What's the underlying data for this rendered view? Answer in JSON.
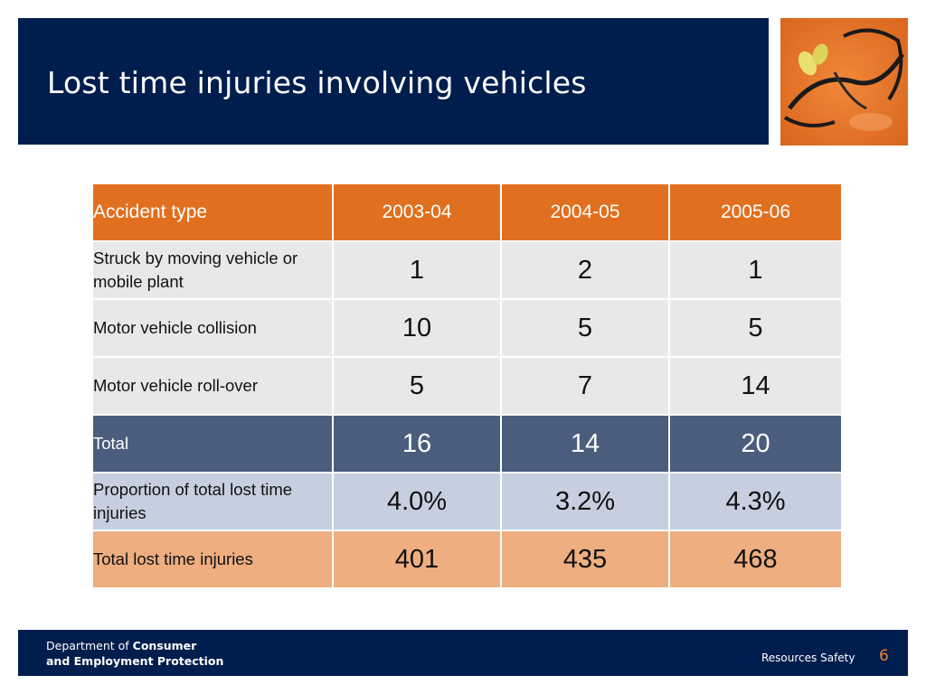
{
  "slide": {
    "title": "Lost time injuries involving vehicles"
  },
  "table": {
    "header": {
      "label": "Accident type",
      "years": [
        "2003-04",
        "2004-05",
        "2005-06"
      ]
    },
    "rows": [
      {
        "label": "Struck by moving vehicle or mobile plant",
        "values": [
          "1",
          "2",
          "1"
        ]
      },
      {
        "label": "Motor vehicle collision",
        "values": [
          "10",
          "5",
          "5"
        ]
      },
      {
        "label": "Motor vehicle roll-over",
        "values": [
          "5",
          "7",
          "14"
        ]
      },
      {
        "label": "Total",
        "values": [
          "16",
          "14",
          "20"
        ]
      },
      {
        "label": "Proportion of total lost time injuries",
        "values": [
          "4.0%",
          "3.2%",
          "4.3%"
        ]
      },
      {
        "label": "Total lost time injuries",
        "values": [
          "401",
          "435",
          "468"
        ]
      }
    ]
  },
  "footer": {
    "dept_prefix": "Department of ",
    "dept_bold_1": "Consumer",
    "dept_bold_2": "and Employment Protection",
    "section": "Resources Safety",
    "page_number": "6"
  },
  "colors": {
    "navy": "#001e4d",
    "orange": "#e07020",
    "total_row": "#4a5d7c",
    "proportion_row": "#c5cfdf",
    "light_row": "#e8e8e8",
    "peach_row": "#eeae80",
    "page_number": "#f08030"
  },
  "icons": {
    "photo": "safety-glasses-earplugs-photo"
  }
}
